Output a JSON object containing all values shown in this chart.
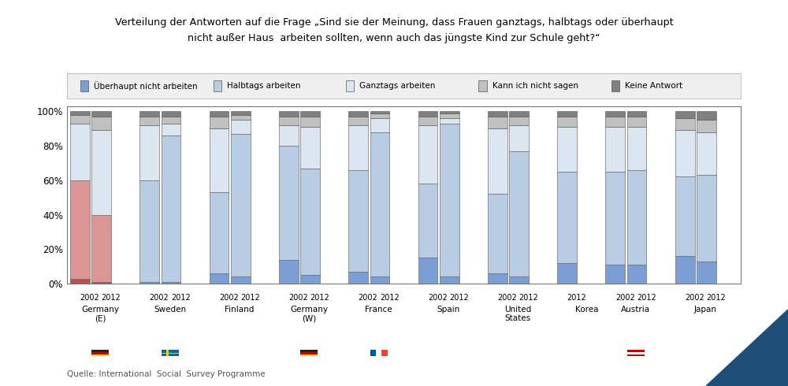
{
  "title_line1": "Verteilung der Antworten auf die Frage „Sind sie der Meinung, dass Frauen ganztags, halbtags oder überhaupt",
  "title_line2": "nicht außer Haus  arbeiten sollten, wenn auch das jüngste Kind zur Schule geht?“",
  "source": "Quelle: International  Social  Survey Programme",
  "legend_labels": [
    "Überhaupt nicht arbeiten",
    "Halbtags arbeiten",
    "Ganztags arbeiten",
    "Kann ich nicht sagen",
    "Keine Antwort"
  ],
  "colors_normal": [
    "#7b9fd4",
    "#b8cce4",
    "#dce6f1",
    "#c0c0c0",
    "#808080"
  ],
  "colors_de_e": [
    "#c0504d",
    "#d99694",
    "#dce6f1",
    "#c0c0c0",
    "#808080"
  ],
  "bg_color": "#ffffff",
  "plot_bg_color": "#ffffff",
  "ytick_labels": [
    "0%",
    "20%",
    "40%",
    "60%",
    "80%",
    "100%"
  ],
  "yticks": [
    0,
    20,
    40,
    60,
    80,
    100
  ],
  "ylim": [
    0,
    103
  ],
  "data": {
    "Germany_E_2002": [
      3,
      57,
      33,
      5,
      2
    ],
    "Germany_E_2012": [
      1,
      39,
      49,
      8,
      3
    ],
    "Sweden_2002": [
      1,
      59,
      32,
      5,
      3
    ],
    "Sweden_2012": [
      1,
      85,
      7,
      4,
      3
    ],
    "Finland_2002": [
      6,
      47,
      37,
      7,
      3
    ],
    "Finland_2012": [
      4,
      83,
      8,
      3,
      2
    ],
    "Germany_W_2002": [
      14,
      66,
      12,
      5,
      3
    ],
    "Germany_W_2012": [
      5,
      62,
      24,
      6,
      3
    ],
    "France_2002": [
      7,
      59,
      26,
      5,
      3
    ],
    "France_2012": [
      4,
      84,
      8,
      3,
      1
    ],
    "Spain_2002": [
      15,
      43,
      34,
      5,
      3
    ],
    "Spain_2012": [
      4,
      89,
      3,
      3,
      1
    ],
    "United_States_2002": [
      6,
      46,
      38,
      7,
      3
    ],
    "United_States_2012": [
      4,
      73,
      15,
      5,
      3
    ],
    "Korea_2012": [
      12,
      53,
      26,
      6,
      3
    ],
    "Austria_2002": [
      11,
      54,
      26,
      6,
      3
    ],
    "Austria_2012": [
      11,
      55,
      25,
      6,
      3
    ],
    "Japan_2002": [
      16,
      46,
      27,
      7,
      4
    ],
    "Japan_2012": [
      13,
      50,
      25,
      7,
      5
    ]
  },
  "countries_info": [
    {
      "name": "Germany\n(E)",
      "keys": [
        "Germany_E_2002",
        "Germany_E_2012"
      ],
      "de_e": true,
      "years": [
        "2002",
        "2012"
      ],
      "flag": "DE"
    },
    {
      "name": "Sweden",
      "keys": [
        "Sweden_2002",
        "Sweden_2012"
      ],
      "de_e": false,
      "years": [
        "2002",
        "2012"
      ],
      "flag": "SE"
    },
    {
      "name": "Finland",
      "keys": [
        "Finland_2002",
        "Finland_2012"
      ],
      "de_e": false,
      "years": [
        "2002",
        "2012"
      ],
      "flag": null
    },
    {
      "name": "Germany\n(W)",
      "keys": [
        "Germany_W_2002",
        "Germany_W_2012"
      ],
      "de_e": false,
      "years": [
        "2002",
        "2012"
      ],
      "flag": "DE"
    },
    {
      "name": "France",
      "keys": [
        "France_2002",
        "France_2012"
      ],
      "de_e": false,
      "years": [
        "2002",
        "2012"
      ],
      "flag": "FR"
    },
    {
      "name": "Spain",
      "keys": [
        "Spain_2002",
        "Spain_2012"
      ],
      "de_e": false,
      "years": [
        "2002",
        "2012"
      ],
      "flag": null
    },
    {
      "name": "United\nStates",
      "keys": [
        "United_States_2002",
        "United_States_2012"
      ],
      "de_e": false,
      "years": [
        "2002",
        "2012"
      ],
      "flag": null
    },
    {
      "name": "Korea",
      "keys": [
        "Korea_2012"
      ],
      "de_e": false,
      "years": [
        "2012"
      ],
      "flag": null
    },
    {
      "name": "Austria",
      "keys": [
        "Austria_2002",
        "Austria_2012"
      ],
      "de_e": false,
      "years": [
        "2002",
        "2012"
      ],
      "flag": "AT"
    },
    {
      "name": "Japan",
      "keys": [
        "Japan_2002",
        "Japan_2012"
      ],
      "de_e": false,
      "years": [
        "2002",
        "2012"
      ],
      "flag": null
    }
  ]
}
